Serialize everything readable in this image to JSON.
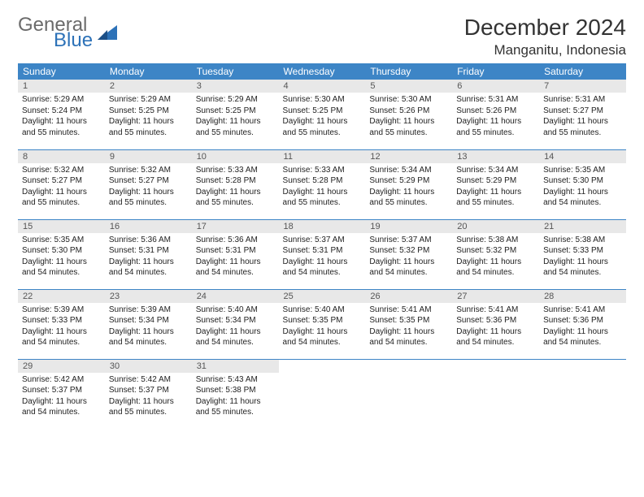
{
  "logo": {
    "text1": "General",
    "text2": "Blue"
  },
  "title": "December 2024",
  "location": "Manganitu, Indonesia",
  "colors": {
    "header_bg": "#3d85c6",
    "header_fg": "#ffffff",
    "daynum_bg": "#e8e8e8",
    "border": "#3d85c6",
    "logo_gray": "#6b6b6b",
    "logo_blue": "#2d72b8"
  },
  "weekdays": [
    "Sunday",
    "Monday",
    "Tuesday",
    "Wednesday",
    "Thursday",
    "Friday",
    "Saturday"
  ],
  "weeks": [
    [
      {
        "n": "1",
        "sr": "Sunrise: 5:29 AM",
        "ss": "Sunset: 5:24 PM",
        "d1": "Daylight: 11 hours",
        "d2": "and 55 minutes."
      },
      {
        "n": "2",
        "sr": "Sunrise: 5:29 AM",
        "ss": "Sunset: 5:25 PM",
        "d1": "Daylight: 11 hours",
        "d2": "and 55 minutes."
      },
      {
        "n": "3",
        "sr": "Sunrise: 5:29 AM",
        "ss": "Sunset: 5:25 PM",
        "d1": "Daylight: 11 hours",
        "d2": "and 55 minutes."
      },
      {
        "n": "4",
        "sr": "Sunrise: 5:30 AM",
        "ss": "Sunset: 5:25 PM",
        "d1": "Daylight: 11 hours",
        "d2": "and 55 minutes."
      },
      {
        "n": "5",
        "sr": "Sunrise: 5:30 AM",
        "ss": "Sunset: 5:26 PM",
        "d1": "Daylight: 11 hours",
        "d2": "and 55 minutes."
      },
      {
        "n": "6",
        "sr": "Sunrise: 5:31 AM",
        "ss": "Sunset: 5:26 PM",
        "d1": "Daylight: 11 hours",
        "d2": "and 55 minutes."
      },
      {
        "n": "7",
        "sr": "Sunrise: 5:31 AM",
        "ss": "Sunset: 5:27 PM",
        "d1": "Daylight: 11 hours",
        "d2": "and 55 minutes."
      }
    ],
    [
      {
        "n": "8",
        "sr": "Sunrise: 5:32 AM",
        "ss": "Sunset: 5:27 PM",
        "d1": "Daylight: 11 hours",
        "d2": "and 55 minutes."
      },
      {
        "n": "9",
        "sr": "Sunrise: 5:32 AM",
        "ss": "Sunset: 5:27 PM",
        "d1": "Daylight: 11 hours",
        "d2": "and 55 minutes."
      },
      {
        "n": "10",
        "sr": "Sunrise: 5:33 AM",
        "ss": "Sunset: 5:28 PM",
        "d1": "Daylight: 11 hours",
        "d2": "and 55 minutes."
      },
      {
        "n": "11",
        "sr": "Sunrise: 5:33 AM",
        "ss": "Sunset: 5:28 PM",
        "d1": "Daylight: 11 hours",
        "d2": "and 55 minutes."
      },
      {
        "n": "12",
        "sr": "Sunrise: 5:34 AM",
        "ss": "Sunset: 5:29 PM",
        "d1": "Daylight: 11 hours",
        "d2": "and 55 minutes."
      },
      {
        "n": "13",
        "sr": "Sunrise: 5:34 AM",
        "ss": "Sunset: 5:29 PM",
        "d1": "Daylight: 11 hours",
        "d2": "and 55 minutes."
      },
      {
        "n": "14",
        "sr": "Sunrise: 5:35 AM",
        "ss": "Sunset: 5:30 PM",
        "d1": "Daylight: 11 hours",
        "d2": "and 54 minutes."
      }
    ],
    [
      {
        "n": "15",
        "sr": "Sunrise: 5:35 AM",
        "ss": "Sunset: 5:30 PM",
        "d1": "Daylight: 11 hours",
        "d2": "and 54 minutes."
      },
      {
        "n": "16",
        "sr": "Sunrise: 5:36 AM",
        "ss": "Sunset: 5:31 PM",
        "d1": "Daylight: 11 hours",
        "d2": "and 54 minutes."
      },
      {
        "n": "17",
        "sr": "Sunrise: 5:36 AM",
        "ss": "Sunset: 5:31 PM",
        "d1": "Daylight: 11 hours",
        "d2": "and 54 minutes."
      },
      {
        "n": "18",
        "sr": "Sunrise: 5:37 AM",
        "ss": "Sunset: 5:31 PM",
        "d1": "Daylight: 11 hours",
        "d2": "and 54 minutes."
      },
      {
        "n": "19",
        "sr": "Sunrise: 5:37 AM",
        "ss": "Sunset: 5:32 PM",
        "d1": "Daylight: 11 hours",
        "d2": "and 54 minutes."
      },
      {
        "n": "20",
        "sr": "Sunrise: 5:38 AM",
        "ss": "Sunset: 5:32 PM",
        "d1": "Daylight: 11 hours",
        "d2": "and 54 minutes."
      },
      {
        "n": "21",
        "sr": "Sunrise: 5:38 AM",
        "ss": "Sunset: 5:33 PM",
        "d1": "Daylight: 11 hours",
        "d2": "and 54 minutes."
      }
    ],
    [
      {
        "n": "22",
        "sr": "Sunrise: 5:39 AM",
        "ss": "Sunset: 5:33 PM",
        "d1": "Daylight: 11 hours",
        "d2": "and 54 minutes."
      },
      {
        "n": "23",
        "sr": "Sunrise: 5:39 AM",
        "ss": "Sunset: 5:34 PM",
        "d1": "Daylight: 11 hours",
        "d2": "and 54 minutes."
      },
      {
        "n": "24",
        "sr": "Sunrise: 5:40 AM",
        "ss": "Sunset: 5:34 PM",
        "d1": "Daylight: 11 hours",
        "d2": "and 54 minutes."
      },
      {
        "n": "25",
        "sr": "Sunrise: 5:40 AM",
        "ss": "Sunset: 5:35 PM",
        "d1": "Daylight: 11 hours",
        "d2": "and 54 minutes."
      },
      {
        "n": "26",
        "sr": "Sunrise: 5:41 AM",
        "ss": "Sunset: 5:35 PM",
        "d1": "Daylight: 11 hours",
        "d2": "and 54 minutes."
      },
      {
        "n": "27",
        "sr": "Sunrise: 5:41 AM",
        "ss": "Sunset: 5:36 PM",
        "d1": "Daylight: 11 hours",
        "d2": "and 54 minutes."
      },
      {
        "n": "28",
        "sr": "Sunrise: 5:41 AM",
        "ss": "Sunset: 5:36 PM",
        "d1": "Daylight: 11 hours",
        "d2": "and 54 minutes."
      }
    ],
    [
      {
        "n": "29",
        "sr": "Sunrise: 5:42 AM",
        "ss": "Sunset: 5:37 PM",
        "d1": "Daylight: 11 hours",
        "d2": "and 54 minutes."
      },
      {
        "n": "30",
        "sr": "Sunrise: 5:42 AM",
        "ss": "Sunset: 5:37 PM",
        "d1": "Daylight: 11 hours",
        "d2": "and 55 minutes."
      },
      {
        "n": "31",
        "sr": "Sunrise: 5:43 AM",
        "ss": "Sunset: 5:38 PM",
        "d1": "Daylight: 11 hours",
        "d2": "and 55 minutes."
      },
      {
        "empty": true
      },
      {
        "empty": true
      },
      {
        "empty": true
      },
      {
        "empty": true
      }
    ]
  ]
}
